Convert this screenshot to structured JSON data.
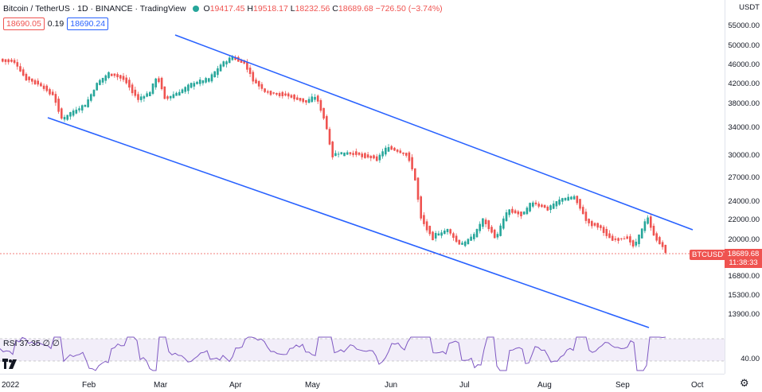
{
  "header": {
    "symbol": "Bitcoin / TetherUS · 1D · BINANCE · TradingView",
    "ohlc": {
      "o_label": "O",
      "o": "19417.45",
      "h_label": "H",
      "h": "19518.17",
      "l_label": "L",
      "l": "18232.56",
      "c_label": "C",
      "c": "18689.68",
      "change": "−726.50 (−3.74%)"
    },
    "sell_price": "18690.05",
    "spread": "0.19",
    "buy_price": "18690.24"
  },
  "price_scale": {
    "currency": "USDT",
    "labels": [
      "55000.00",
      "50000.00",
      "46000.00",
      "42000.00",
      "38000.00",
      "34000.00",
      "30000.00",
      "27000.00",
      "24000.00",
      "22000.00",
      "20000.00",
      "16800.00",
      "15300.00",
      "13900.00"
    ],
    "current_price": "18689.68",
    "countdown": "11:38:33",
    "symbol_tag": "BTCUSDT"
  },
  "rsi": {
    "label": "RSI",
    "value": "37.35",
    "params": "∅ ∅",
    "level_label": "40.00"
  },
  "time_axis": {
    "labels": [
      "2022",
      "Feb",
      "Mar",
      "Apr",
      "May",
      "Jun",
      "Jul",
      "Aug",
      "Sep",
      "Oct"
    ]
  },
  "colors": {
    "up": "#26a69a",
    "down": "#ef5350",
    "channel": "#2962ff",
    "rsi_line": "#7e57c2"
  }
}
